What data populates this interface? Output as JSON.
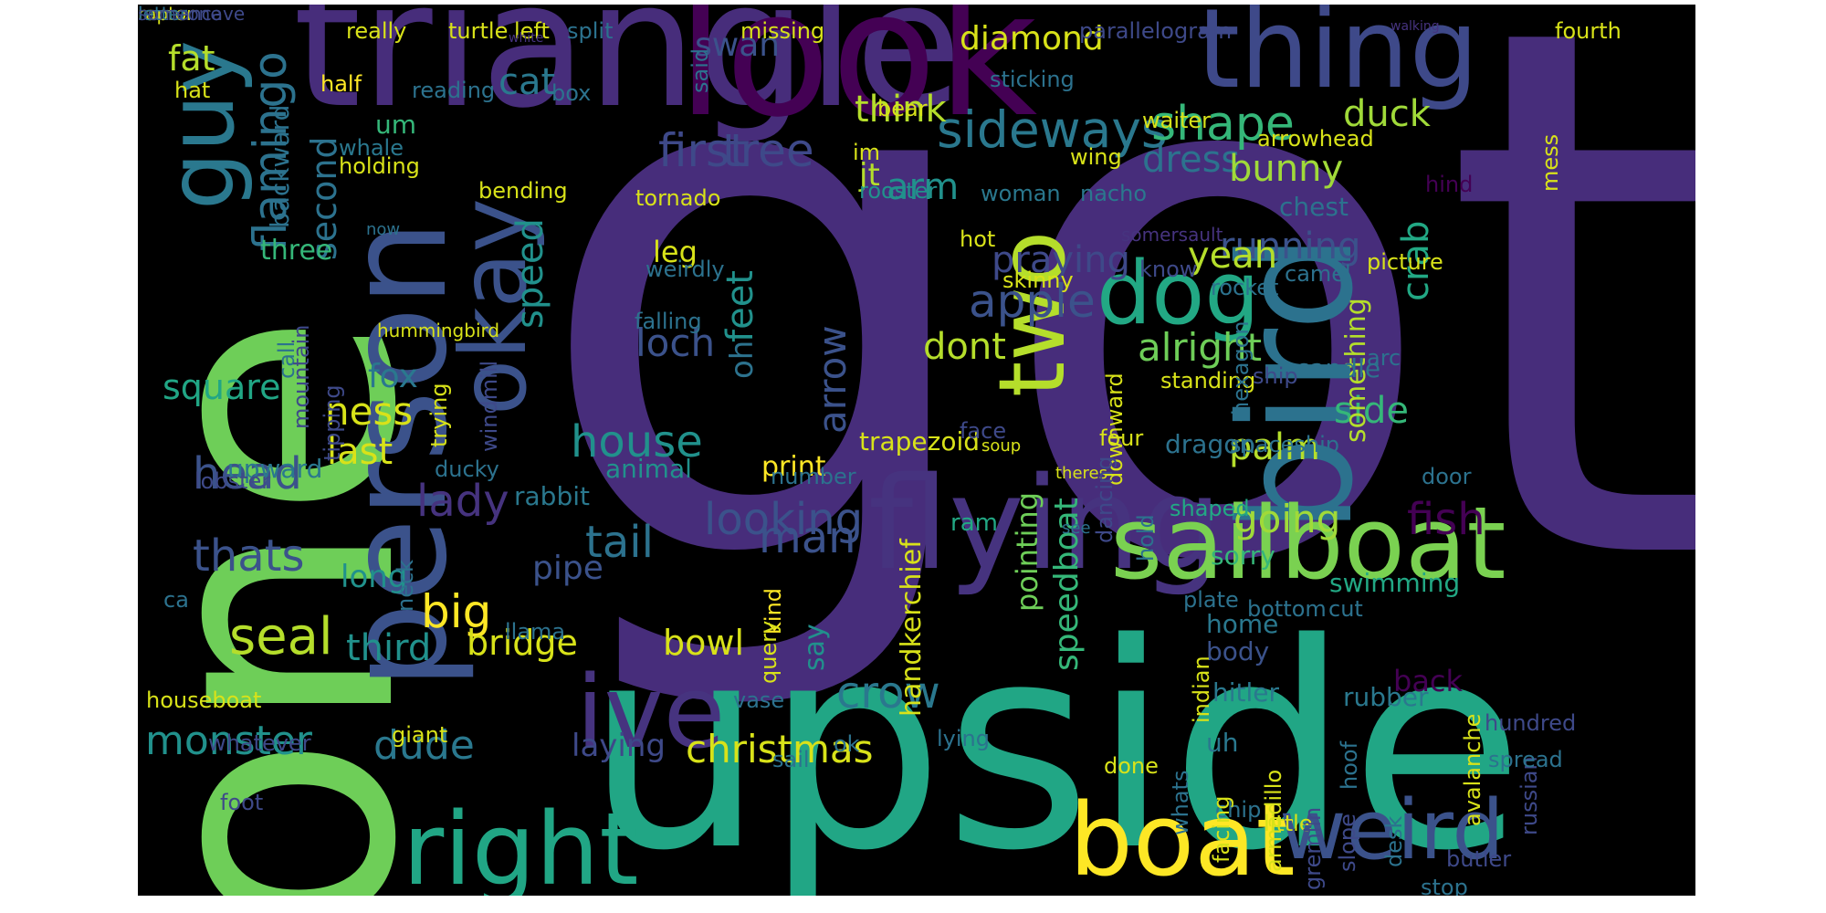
{
  "words": [
    {
      "text": "got",
      "color": "#472d7b"
    },
    {
      "text": "one",
      "color": "#6ece58"
    },
    {
      "text": "upside",
      "color": "#21a685"
    },
    {
      "text": "triangle",
      "color": "#472d7b"
    },
    {
      "text": "look",
      "color": "#440154"
    },
    {
      "text": "person",
      "color": "#3b528b"
    },
    {
      "text": "bird",
      "color": "#2c728e"
    },
    {
      "text": "thing",
      "color": "#3e4989"
    },
    {
      "text": "flying",
      "color": "#46337f"
    },
    {
      "text": "sailboat",
      "color": "#7ad151"
    },
    {
      "text": "boat",
      "color": "#fde725"
    },
    {
      "text": "weird",
      "color": "#3b528b"
    },
    {
      "text": "right",
      "color": "#21a685"
    },
    {
      "text": "ive",
      "color": "#46337f"
    },
    {
      "text": "okay",
      "color": "#3b528b"
    },
    {
      "text": "two",
      "color": "#b5de2b"
    },
    {
      "text": "dog",
      "color": "#22a884"
    },
    {
      "text": "guy",
      "color": "#2a788e"
    },
    {
      "text": "flamingo",
      "color": "#2c728e"
    },
    {
      "text": "sideways",
      "color": "#2a788e"
    },
    {
      "text": "shape",
      "color": "#35b779"
    },
    {
      "text": "apple",
      "color": "#3b528b"
    },
    {
      "text": "first",
      "color": "#3e4989"
    },
    {
      "text": "tree",
      "color": "#3e4989"
    },
    {
      "text": "dress",
      "color": "#2c728e"
    },
    {
      "text": "duck",
      "color": "#a0da39"
    },
    {
      "text": "think",
      "color": "#b5de2b"
    },
    {
      "text": "cat",
      "color": "#2a788e"
    },
    {
      "text": "bunny",
      "color": "#a0da39"
    },
    {
      "text": "running",
      "color": "#3b528b"
    },
    {
      "text": "crab",
      "color": "#22a884"
    },
    {
      "text": "loch",
      "color": "#3b528b"
    },
    {
      "text": "alright",
      "color": "#6ece58"
    },
    {
      "text": "house",
      "color": "#21918c"
    },
    {
      "text": "head",
      "color": "#3b528b"
    },
    {
      "text": "lady",
      "color": "#46337f"
    },
    {
      "text": "thats",
      "color": "#3b528b"
    },
    {
      "text": "looking",
      "color": "#3b528b"
    },
    {
      "text": "tail",
      "color": "#2c728e"
    },
    {
      "text": "man",
      "color": "#3b528b"
    },
    {
      "text": "seal",
      "color": "#b5de2b"
    },
    {
      "text": "big",
      "color": "#fde725"
    },
    {
      "text": "crow",
      "color": "#2a788e"
    },
    {
      "text": "monster",
      "color": "#21918c"
    },
    {
      "text": "dude",
      "color": "#2a788e"
    },
    {
      "text": "christmas",
      "color": "#d8e219"
    },
    {
      "text": "fish",
      "color": "#440154"
    },
    {
      "text": "going",
      "color": "#a0da39"
    },
    {
      "text": "side",
      "color": "#35b779"
    },
    {
      "text": "square",
      "color": "#21a685"
    },
    {
      "text": "ness",
      "color": "#d8e219"
    },
    {
      "text": "last",
      "color": "#d8e219"
    },
    {
      "text": "palm",
      "color": "#b5de2b"
    },
    {
      "text": "yeah",
      "color": "#b5de2b"
    },
    {
      "text": "arm",
      "color": "#21918c"
    },
    {
      "text": "praying",
      "color": "#3e4989"
    },
    {
      "text": "dont",
      "color": "#b5de2b"
    },
    {
      "text": "speed",
      "color": "#21918c"
    },
    {
      "text": "feet",
      "color": "#21918c"
    },
    {
      "text": "arrow",
      "color": "#3b528b"
    },
    {
      "text": "fat",
      "color": "#b5de2b"
    },
    {
      "text": "second",
      "color": "#2c728e"
    },
    {
      "text": "third",
      "color": "#21918c"
    },
    {
      "text": "bridge",
      "color": "#d8e219"
    },
    {
      "text": "bowl",
      "color": "#d8e219"
    },
    {
      "text": "oh",
      "color": "#2c728e"
    },
    {
      "text": "diamond",
      "color": "#d8e219"
    },
    {
      "text": "swan",
      "color": "#3b528b"
    },
    {
      "text": "fox",
      "color": "#2a788e"
    },
    {
      "text": "leg",
      "color": "#d8e219"
    },
    {
      "text": "jt",
      "color": "#b5de2b"
    },
    {
      "text": "pipe",
      "color": "#3b528b"
    },
    {
      "text": "long",
      "color": "#21918c"
    },
    {
      "text": "laying",
      "color": "#3e4989"
    },
    {
      "text": "speedboat",
      "color": "#35b779"
    },
    {
      "text": "pointing",
      "color": "#6ece58"
    },
    {
      "text": "handkerchief",
      "color": "#d8e219"
    },
    {
      "text": "something",
      "color": "#b5de2b"
    },
    {
      "text": "sorry",
      "color": "#35b779"
    },
    {
      "text": "swimming",
      "color": "#22a884"
    },
    {
      "text": "home",
      "color": "#2a788e"
    },
    {
      "text": "back",
      "color": "#440154"
    },
    {
      "text": "hitler",
      "color": "#2a788e"
    },
    {
      "text": "rubber",
      "color": "#2a788e"
    },
    {
      "text": "uh",
      "color": "#2a788e"
    },
    {
      "text": "body",
      "color": "#3b528b"
    },
    {
      "text": "rabbit",
      "color": "#2a788e"
    },
    {
      "text": "upward",
      "color": "#2a788e"
    },
    {
      "text": "animal",
      "color": "#21918c"
    },
    {
      "text": "print",
      "color": "#fde725"
    },
    {
      "text": "say",
      "color": "#21918c"
    },
    {
      "text": "candle",
      "color": "#2c728e"
    },
    {
      "text": "chest",
      "color": "#2c728e"
    },
    {
      "text": "shaped",
      "color": "#22a884"
    },
    {
      "text": "ram",
      "color": "#22a884"
    },
    {
      "text": "dragon",
      "color": "#2c728e"
    },
    {
      "text": "trapezoid",
      "color": "#d8e219"
    },
    {
      "text": "three",
      "color": "#35b779"
    },
    {
      "text": "backward",
      "color": "#2c728e"
    },
    {
      "text": "holding",
      "color": "#d8e219"
    },
    {
      "text": "um",
      "color": "#35b779"
    },
    {
      "text": "half",
      "color": "#fde725"
    },
    {
      "text": "hat",
      "color": "#d8e219"
    },
    {
      "text": "reading",
      "color": "#2c728e"
    },
    {
      "text": "really",
      "color": "#d8e219"
    },
    {
      "text": "turtle",
      "color": "#d8e219"
    },
    {
      "text": "left",
      "color": "#d8e219"
    },
    {
      "text": "split",
      "color": "#2c728e"
    },
    {
      "text": "missing",
      "color": "#d8e219"
    },
    {
      "text": "parallelogram",
      "color": "#3e4989"
    },
    {
      "text": "walking",
      "color": "#46337f"
    },
    {
      "text": "white",
      "color": "#46337f"
    },
    {
      "text": "fourth",
      "color": "#d8e219"
    },
    {
      "text": "arrowhead",
      "color": "#d8e219"
    },
    {
      "text": "waiter",
      "color": "#d8e219"
    },
    {
      "text": "im",
      "color": "#d8e219"
    },
    {
      "text": "wing",
      "color": "#d8e219"
    },
    {
      "text": "rooster",
      "color": "#21918c"
    },
    {
      "text": "woman",
      "color": "#2a788e"
    },
    {
      "text": "nacho",
      "color": "#2a788e"
    },
    {
      "text": "hind",
      "color": "#440154"
    },
    {
      "text": "mess",
      "color": "#d8e219"
    },
    {
      "text": "whale",
      "color": "#2a788e"
    },
    {
      "text": "bending",
      "color": "#d8e219"
    },
    {
      "text": "tornado",
      "color": "#d8e219"
    },
    {
      "text": "sticking",
      "color": "#2c728e"
    },
    {
      "text": "bear",
      "color": "#d8e219"
    },
    {
      "text": "said",
      "color": "#2c728e"
    },
    {
      "text": "box",
      "color": "#2c728e"
    },
    {
      "text": "now",
      "color": "#2c728e"
    },
    {
      "text": "somersault",
      "color": "#46337f"
    },
    {
      "text": "hot",
      "color": "#d8e219"
    },
    {
      "text": "weirdly",
      "color": "#2c728e"
    },
    {
      "text": "falling",
      "color": "#2c728e"
    },
    {
      "text": "skinny",
      "color": "#d8e219"
    },
    {
      "text": "know",
      "color": "#3e4989"
    },
    {
      "text": "rocket",
      "color": "#2c728e"
    },
    {
      "text": "camel",
      "color": "#2c728e"
    },
    {
      "text": "picture",
      "color": "#d8e219"
    },
    {
      "text": "arc",
      "color": "#2c728e"
    },
    {
      "text": "ship",
      "color": "#3e4989"
    },
    {
      "text": "standing",
      "color": "#d8e219"
    },
    {
      "text": "hexagon",
      "color": "#2c728e"
    },
    {
      "text": "call",
      "color": "#2c728e"
    },
    {
      "text": "hummingbird",
      "color": "#d8e219"
    },
    {
      "text": "mountain",
      "color": "#3e4989"
    },
    {
      "text": "trying",
      "color": "#d8e219"
    },
    {
      "text": "windmill",
      "color": "#3e4989"
    },
    {
      "text": "ducky",
      "color": "#2c728e"
    },
    {
      "text": "face",
      "color": "#3e4989"
    },
    {
      "text": "soup",
      "color": "#d8e219"
    },
    {
      "text": "downward",
      "color": "#d8e219"
    },
    {
      "text": "four",
      "color": "#d8e219"
    },
    {
      "text": "spaceship",
      "color": "#2c728e"
    },
    {
      "text": "number",
      "color": "#2c728e"
    },
    {
      "text": "door",
      "color": "#2c728e"
    },
    {
      "text": "lobster",
      "color": "#3e4989"
    },
    {
      "text": "tipping",
      "color": "#3e4989"
    },
    {
      "text": "theres",
      "color": "#d8e219"
    },
    {
      "text": "see",
      "color": "#2c728e"
    },
    {
      "text": "dancing",
      "color": "#3e4989"
    },
    {
      "text": "hold",
      "color": "#2c728e"
    },
    {
      "text": "plate",
      "color": "#2c728e"
    },
    {
      "text": "cut",
      "color": "#2c728e"
    },
    {
      "text": "bottom",
      "color": "#2c728e"
    },
    {
      "text": "ca",
      "color": "#2c728e"
    },
    {
      "text": "neck",
      "color": "#2c728e"
    },
    {
      "text": "llama",
      "color": "#2c728e"
    },
    {
      "text": "houseboat",
      "color": "#d8e219"
    },
    {
      "text": "whatever",
      "color": "#3e4989"
    },
    {
      "text": "foot",
      "color": "#3e4989"
    },
    {
      "text": "giant",
      "color": "#d8e219"
    },
    {
      "text": "vase",
      "color": "#2c728e"
    },
    {
      "text": "kind",
      "color": "#fde725"
    },
    {
      "text": "query",
      "color": "#d8e219"
    },
    {
      "text": "sail",
      "color": "#2c728e"
    },
    {
      "text": "ok",
      "color": "#2c728e"
    },
    {
      "text": "lying",
      "color": "#2c728e"
    },
    {
      "text": "done",
      "color": "#d8e219"
    },
    {
      "text": "indian",
      "color": "#d8e219"
    },
    {
      "text": "hoof",
      "color": "#2c728e"
    },
    {
      "text": "chip",
      "color": "#2c728e"
    },
    {
      "text": "little",
      "color": "#d8e219"
    },
    {
      "text": "slope",
      "color": "#3e4989"
    },
    {
      "text": "armadillo",
      "color": "#d8e219"
    },
    {
      "text": "facing",
      "color": "#d8e219"
    },
    {
      "text": "whats",
      "color": "#2c728e"
    },
    {
      "text": "gremlin",
      "color": "#3e4989"
    },
    {
      "text": "desk",
      "color": "#2c728e"
    },
    {
      "text": "russian",
      "color": "#3e4989"
    },
    {
      "text": "avalanche",
      "color": "#d8e219"
    },
    {
      "text": "butler",
      "color": "#3e4989"
    },
    {
      "text": "stop",
      "color": "#2c728e"
    },
    {
      "text": "spread",
      "color": "#2c728e"
    },
    {
      "text": "hundred",
      "color": "#3e4989"
    },
    {
      "text": "humancave",
      "color": "#3e4989"
    },
    {
      "text": "raptor",
      "color": "#d8e219"
    },
    {
      "text": "letter",
      "color": "#2c728e"
    },
    {
      "text": "someone",
      "color": "#3e4989"
    }
  ]
}
